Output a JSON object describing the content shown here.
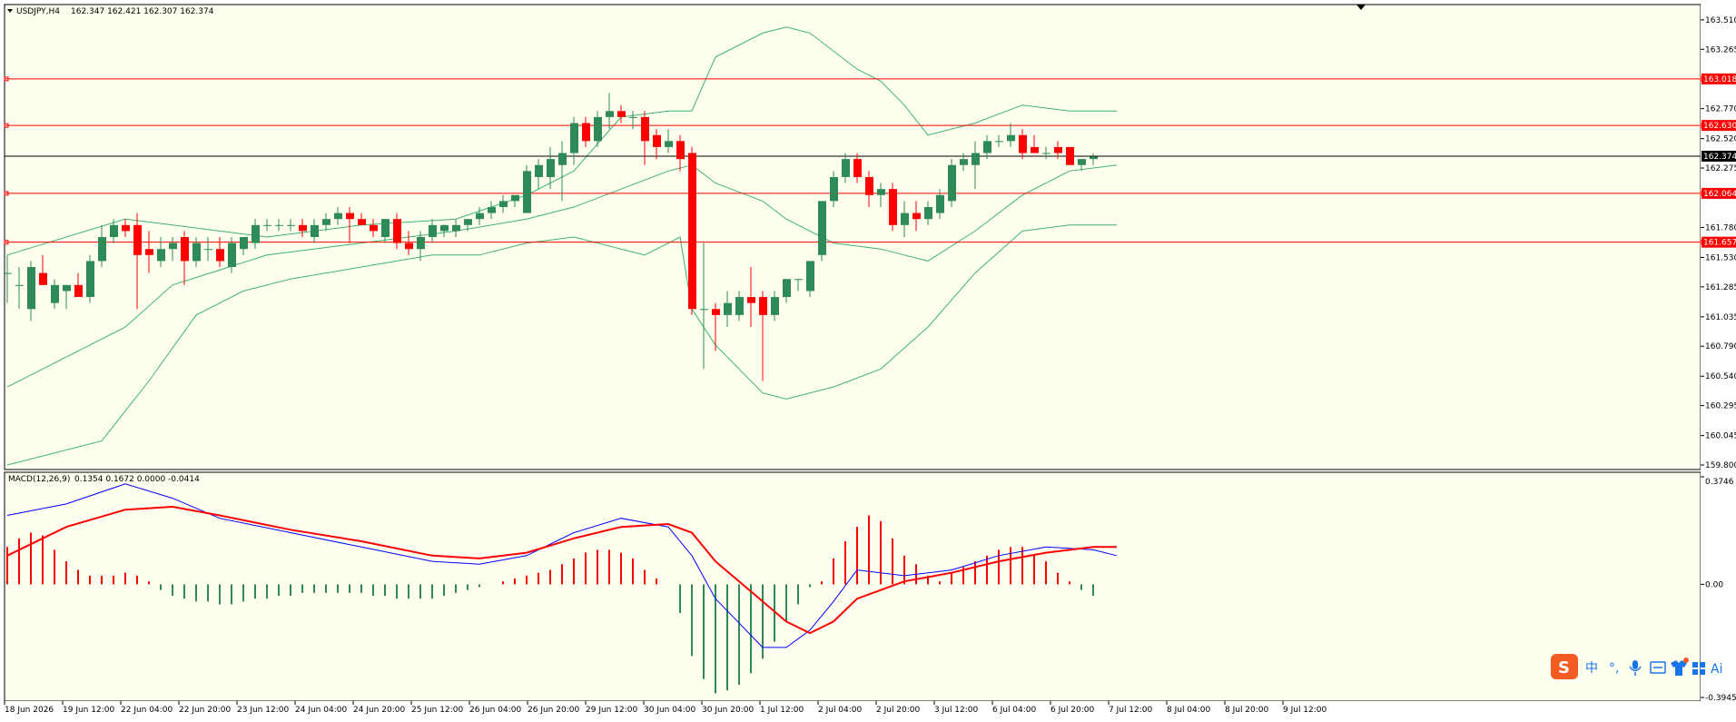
{
  "window": {
    "symbol_title": "USDJPY,H4",
    "ohlc": "162.347 162.421 162.307 162.374"
  },
  "macd_header": {
    "title": "MACD(12,26,9)",
    "values": "0.1354 0.1672 0.0000 -0.0414"
  },
  "colors": {
    "background": "#fffff0",
    "bull": "#2e8b57",
    "bear": "#ff0000",
    "bollinger": "#3cb371",
    "level_line": "#ff0000",
    "current_line": "#000000",
    "macd_line": "#0000ff",
    "signal_line": "#ff0000"
  },
  "ime_toolbar": {
    "items": [
      "中",
      "°,",
      "🎤",
      "▦",
      "👕",
      "▦",
      "Ai"
    ],
    "icon_names": [
      "sogou-logo-icon",
      "chinese-mode-icon",
      "punctuation-icon",
      "microphone-icon",
      "keyboard-icon",
      "skin-icon",
      "toolbox-icon",
      "ai-icon"
    ]
  },
  "chart_data": [
    {
      "type": "candlestick",
      "title": "USDJPY,H4",
      "ylim": [
        159.8,
        163.6
      ],
      "y_ticks": [
        "163.510",
        "163.265",
        "162.770",
        "162.520",
        "162.275",
        "161.780",
        "161.530",
        "161.285",
        "161.035",
        "160.790",
        "160.540",
        "160.295",
        "160.045",
        "159.800"
      ],
      "horizontal_levels": [
        {
          "value": 163.018,
          "label": "163.018"
        },
        {
          "value": 162.63,
          "label": "162.630"
        },
        {
          "value": 162.064,
          "label": "162.064"
        },
        {
          "value": 161.657,
          "label": "161.657"
        }
      ],
      "current_price": {
        "value": 162.374,
        "label": "162.374"
      },
      "x_labels": [
        "18 Jun 2026",
        "19 Jun 12:00",
        "22 Jun 04:00",
        "22 Jun 20:00",
        "23 Jun 12:00",
        "24 Jun 04:00",
        "24 Jun 20:00",
        "25 Jun 12:00",
        "26 Jun 04:00",
        "26 Jun 20:00",
        "29 Jun 12:00",
        "30 Jun 04:00",
        "30 Jun 20:00",
        "1 Jul 12:00",
        "2 Jul 04:00",
        "2 Jul 20:00",
        "3 Jul 12:00",
        "6 Jul 04:00",
        "6 Jul 20:00",
        "7 Jul 12:00",
        "8 Jul 04:00",
        "8 Jul 20:00",
        "9 Jul 12:00"
      ],
      "candles": [
        [
          161.4,
          161.55,
          161.15,
          161.4
        ],
        [
          161.3,
          161.45,
          161.1,
          161.3
        ],
        [
          161.1,
          161.5,
          161.0,
          161.45
        ],
        [
          161.4,
          161.55,
          161.3,
          161.3
        ],
        [
          161.15,
          161.35,
          161.1,
          161.3
        ],
        [
          161.25,
          161.3,
          161.1,
          161.3
        ],
        [
          161.3,
          161.4,
          161.2,
          161.2
        ],
        [
          161.2,
          161.55,
          161.15,
          161.5
        ],
        [
          161.5,
          161.8,
          161.45,
          161.7
        ],
        [
          161.7,
          161.85,
          161.65,
          161.8
        ],
        [
          161.8,
          161.85,
          161.7,
          161.75
        ],
        [
          161.8,
          161.9,
          161.1,
          161.55
        ],
        [
          161.6,
          161.75,
          161.4,
          161.55
        ],
        [
          161.5,
          161.7,
          161.45,
          161.6
        ],
        [
          161.6,
          161.7,
          161.5,
          161.65
        ],
        [
          161.7,
          161.75,
          161.3,
          161.5
        ],
        [
          161.5,
          161.7,
          161.45,
          161.65
        ],
        [
          161.6,
          161.7,
          161.5,
          161.6
        ],
        [
          161.6,
          161.7,
          161.45,
          161.5
        ],
        [
          161.45,
          161.7,
          161.4,
          161.65
        ],
        [
          161.6,
          161.7,
          161.55,
          161.7
        ],
        [
          161.65,
          161.85,
          161.6,
          161.8
        ],
        [
          161.8,
          161.85,
          161.75,
          161.8
        ],
        [
          161.8,
          161.85,
          161.75,
          161.8
        ],
        [
          161.8,
          161.85,
          161.75,
          161.8
        ],
        [
          161.8,
          161.85,
          161.7,
          161.75
        ],
        [
          161.7,
          161.85,
          161.65,
          161.8
        ],
        [
          161.8,
          161.9,
          161.75,
          161.85
        ],
        [
          161.85,
          161.95,
          161.8,
          161.9
        ],
        [
          161.9,
          161.95,
          161.65,
          161.85
        ],
        [
          161.85,
          161.9,
          161.8,
          161.8
        ],
        [
          161.8,
          161.85,
          161.7,
          161.75
        ],
        [
          161.7,
          161.85,
          161.65,
          161.85
        ],
        [
          161.85,
          161.9,
          161.6,
          161.65
        ],
        [
          161.65,
          161.75,
          161.55,
          161.6
        ],
        [
          161.6,
          161.75,
          161.5,
          161.7
        ],
        [
          161.7,
          161.85,
          161.65,
          161.8
        ],
        [
          161.75,
          161.8,
          161.7,
          161.8
        ],
        [
          161.75,
          161.85,
          161.7,
          161.8
        ],
        [
          161.8,
          161.85,
          161.75,
          161.85
        ],
        [
          161.85,
          161.95,
          161.8,
          161.9
        ],
        [
          161.9,
          162.0,
          161.85,
          161.95
        ],
        [
          161.95,
          162.05,
          161.9,
          162.0
        ],
        [
          162.0,
          162.05,
          161.95,
          162.05
        ],
        [
          161.9,
          162.3,
          161.9,
          162.25
        ],
        [
          162.2,
          162.35,
          162.1,
          162.3
        ],
        [
          162.2,
          162.45,
          162.1,
          162.35
        ],
        [
          162.3,
          162.5,
          162.0,
          162.4
        ],
        [
          162.4,
          162.7,
          162.3,
          162.65
        ],
        [
          162.65,
          162.7,
          162.45,
          162.5
        ],
        [
          162.5,
          162.75,
          162.45,
          162.7
        ],
        [
          162.7,
          162.9,
          162.6,
          162.75
        ],
        [
          162.75,
          162.8,
          162.65,
          162.7
        ],
        [
          162.7,
          162.75,
          162.6,
          162.7
        ],
        [
          162.7,
          162.75,
          162.3,
          162.5
        ],
        [
          162.55,
          162.6,
          162.35,
          162.45
        ],
        [
          162.45,
          162.6,
          162.4,
          162.5
        ],
        [
          162.5,
          162.55,
          162.25,
          162.35
        ],
        [
          162.4,
          162.45,
          161.05,
          161.1
        ],
        [
          161.1,
          161.65,
          160.6,
          161.1
        ],
        [
          161.1,
          161.15,
          160.75,
          161.05
        ],
        [
          161.05,
          161.25,
          160.95,
          161.15
        ],
        [
          161.05,
          161.25,
          161.0,
          161.2
        ],
        [
          161.2,
          161.45,
          160.95,
          161.15
        ],
        [
          161.2,
          161.25,
          160.5,
          161.05
        ],
        [
          161.05,
          161.25,
          161.0,
          161.2
        ],
        [
          161.2,
          161.35,
          161.15,
          161.35
        ],
        [
          161.35,
          161.35,
          161.25,
          161.35
        ],
        [
          161.25,
          161.5,
          161.2,
          161.5
        ],
        [
          161.55,
          162.0,
          161.5,
          162.0
        ],
        [
          162.0,
          162.25,
          161.95,
          162.2
        ],
        [
          162.2,
          162.4,
          162.15,
          162.35
        ],
        [
          162.35,
          162.4,
          162.15,
          162.2
        ],
        [
          162.2,
          162.25,
          161.95,
          162.05
        ],
        [
          162.05,
          162.15,
          161.95,
          162.1
        ],
        [
          162.1,
          162.15,
          161.75,
          161.8
        ],
        [
          161.8,
          162.0,
          161.7,
          161.9
        ],
        [
          161.9,
          162.0,
          161.75,
          161.85
        ],
        [
          161.85,
          162.0,
          161.8,
          161.95
        ],
        [
          161.9,
          162.1,
          161.85,
          162.05
        ],
        [
          162.0,
          162.35,
          161.95,
          162.3
        ],
        [
          162.3,
          162.4,
          162.25,
          162.35
        ],
        [
          162.3,
          162.5,
          162.1,
          162.4
        ],
        [
          162.4,
          162.55,
          162.35,
          162.5
        ],
        [
          162.5,
          162.55,
          162.45,
          162.5
        ],
        [
          162.5,
          162.65,
          162.45,
          162.55
        ],
        [
          162.55,
          162.6,
          162.35,
          162.4
        ],
        [
          162.45,
          162.55,
          162.4,
          162.4
        ],
        [
          162.4,
          162.45,
          162.35,
          162.4
        ],
        [
          162.45,
          162.5,
          162.35,
          162.4
        ],
        [
          162.45,
          162.45,
          162.3,
          162.3
        ],
        [
          162.3,
          162.35,
          162.25,
          162.35
        ],
        [
          162.35,
          162.4,
          162.3,
          162.37
        ]
      ],
      "bollinger": {
        "upper": [
          [
            0,
            161.55
          ],
          [
            10,
            161.85
          ],
          [
            14,
            161.8
          ],
          [
            22,
            161.7
          ],
          [
            30,
            161.8
          ],
          [
            38,
            161.85
          ],
          [
            44,
            162.05
          ],
          [
            48,
            162.25
          ],
          [
            52,
            162.7
          ],
          [
            56,
            162.75
          ],
          [
            58,
            162.75
          ],
          [
            60,
            163.2
          ],
          [
            64,
            163.4
          ],
          [
            66,
            163.45
          ],
          [
            68,
            163.4
          ],
          [
            72,
            163.1
          ],
          [
            74,
            163.0
          ],
          [
            76,
            162.8
          ],
          [
            78,
            162.55
          ],
          [
            82,
            162.65
          ],
          [
            86,
            162.8
          ],
          [
            90,
            162.75
          ],
          [
            94,
            162.75
          ]
        ],
        "middle": [
          [
            0,
            160.45
          ],
          [
            10,
            160.95
          ],
          [
            14,
            161.3
          ],
          [
            22,
            161.55
          ],
          [
            30,
            161.65
          ],
          [
            38,
            161.75
          ],
          [
            44,
            161.85
          ],
          [
            48,
            161.95
          ],
          [
            52,
            162.1
          ],
          [
            56,
            162.25
          ],
          [
            58,
            162.3
          ],
          [
            60,
            162.15
          ],
          [
            64,
            162.0
          ],
          [
            66,
            161.85
          ],
          [
            70,
            161.65
          ],
          [
            74,
            161.6
          ],
          [
            76,
            161.55
          ],
          [
            78,
            161.5
          ],
          [
            82,
            161.75
          ],
          [
            86,
            162.05
          ],
          [
            90,
            162.25
          ],
          [
            94,
            162.3
          ]
        ],
        "lower": [
          [
            0,
            159.8
          ],
          [
            8,
            160.0
          ],
          [
            12,
            160.5
          ],
          [
            16,
            161.05
          ],
          [
            20,
            161.25
          ],
          [
            24,
            161.35
          ],
          [
            30,
            161.45
          ],
          [
            36,
            161.55
          ],
          [
            40,
            161.55
          ],
          [
            44,
            161.65
          ],
          [
            48,
            161.7
          ],
          [
            54,
            161.55
          ],
          [
            57,
            161.7
          ],
          [
            58,
            161.1
          ],
          [
            60,
            160.8
          ],
          [
            64,
            160.4
          ],
          [
            66,
            160.35
          ],
          [
            70,
            160.45
          ],
          [
            74,
            160.6
          ],
          [
            78,
            160.95
          ],
          [
            82,
            161.4
          ],
          [
            86,
            161.75
          ],
          [
            90,
            161.8
          ],
          [
            94,
            161.8
          ]
        ]
      }
    },
    {
      "type": "macd",
      "title": "MACD(12,26,9)",
      "ylim": [
        -0.3945,
        0.3746
      ],
      "y_ticks": [
        "0.3746",
        "0.00",
        "-0.3945"
      ],
      "histogram": [
        0.13,
        0.16,
        0.18,
        0.17,
        0.12,
        0.08,
        0.05,
        0.03,
        0.03,
        0.03,
        0.04,
        0.03,
        0.01,
        -0.02,
        -0.04,
        -0.05,
        -0.06,
        -0.06,
        -0.07,
        -0.07,
        -0.06,
        -0.05,
        -0.05,
        -0.04,
        -0.04,
        -0.03,
        -0.03,
        -0.03,
        -0.03,
        -0.03,
        -0.03,
        -0.04,
        -0.04,
        -0.05,
        -0.05,
        -0.05,
        -0.05,
        -0.04,
        -0.03,
        -0.02,
        -0.01,
        0.0,
        0.01,
        0.02,
        0.03,
        0.04,
        0.05,
        0.07,
        0.09,
        0.11,
        0.12,
        0.12,
        0.11,
        0.09,
        0.05,
        0.02,
        0.0,
        -0.1,
        -0.25,
        -0.33,
        -0.38,
        -0.37,
        -0.35,
        -0.31,
        -0.26,
        -0.2,
        -0.13,
        -0.07,
        -0.01,
        0.01,
        0.09,
        0.15,
        0.2,
        0.24,
        0.22,
        0.16,
        0.1,
        0.07,
        0.03,
        0.01,
        0.04,
        0.06,
        0.08,
        0.1,
        0.12,
        0.13,
        0.13,
        0.1,
        0.08,
        0.04,
        0.01,
        -0.02,
        -0.04
      ],
      "macd_line": [
        [
          0,
          0.24
        ],
        [
          5,
          0.28
        ],
        [
          10,
          0.35
        ],
        [
          14,
          0.3
        ],
        [
          18,
          0.23
        ],
        [
          24,
          0.18
        ],
        [
          30,
          0.13
        ],
        [
          36,
          0.08
        ],
        [
          40,
          0.07
        ],
        [
          44,
          0.1
        ],
        [
          48,
          0.18
        ],
        [
          52,
          0.23
        ],
        [
          56,
          0.2
        ],
        [
          58,
          0.1
        ],
        [
          60,
          -0.05
        ],
        [
          64,
          -0.22
        ],
        [
          66,
          -0.22
        ],
        [
          68,
          -0.16
        ],
        [
          70,
          -0.06
        ],
        [
          72,
          0.05
        ],
        [
          76,
          0.03
        ],
        [
          80,
          0.05
        ],
        [
          84,
          0.1
        ],
        [
          88,
          0.13
        ],
        [
          92,
          0.12
        ],
        [
          94,
          0.1
        ]
      ],
      "signal_line": [
        [
          0,
          0.1
        ],
        [
          5,
          0.2
        ],
        [
          10,
          0.26
        ],
        [
          14,
          0.27
        ],
        [
          18,
          0.24
        ],
        [
          24,
          0.19
        ],
        [
          30,
          0.15
        ],
        [
          36,
          0.1
        ],
        [
          40,
          0.09
        ],
        [
          44,
          0.11
        ],
        [
          48,
          0.16
        ],
        [
          52,
          0.2
        ],
        [
          56,
          0.21
        ],
        [
          58,
          0.18
        ],
        [
          60,
          0.08
        ],
        [
          64,
          -0.06
        ],
        [
          66,
          -0.13
        ],
        [
          68,
          -0.17
        ],
        [
          70,
          -0.13
        ],
        [
          72,
          -0.05
        ],
        [
          76,
          0.01
        ],
        [
          80,
          0.04
        ],
        [
          84,
          0.08
        ],
        [
          88,
          0.11
        ],
        [
          92,
          0.13
        ],
        [
          94,
          0.13
        ]
      ]
    }
  ]
}
